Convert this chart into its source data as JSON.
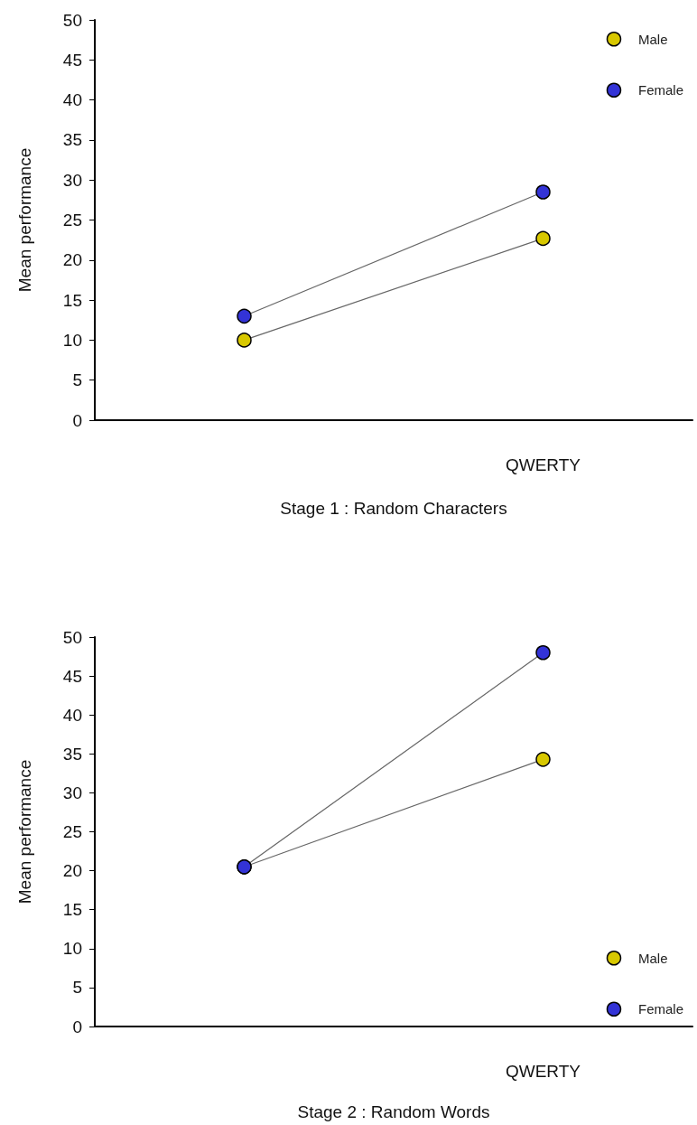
{
  "chart_data": [
    {
      "type": "line",
      "xlabel": "Stage 1 : Random Characters",
      "ylabel": "Mean performance",
      "categories": [
        null,
        "QWERTY"
      ],
      "series": [
        {
          "name": "Male",
          "color": "#d8c800",
          "values": [
            10,
            22.7
          ]
        },
        {
          "name": "Female",
          "color": "#3333d6",
          "values": [
            13,
            28.5
          ]
        }
      ],
      "ylim": [
        0,
        50
      ],
      "yticks": [
        0,
        5,
        10,
        15,
        20,
        25,
        30,
        35,
        40,
        45,
        50
      ],
      "grid": false,
      "legend": "top right",
      "marker": "circle",
      "line_style": "solid"
    },
    {
      "type": "line",
      "xlabel": "Stage 2 : Random Words",
      "ylabel": "Mean performance",
      "categories": [
        null,
        "QWERTY"
      ],
      "series": [
        {
          "name": "Male",
          "color": "#d8c800",
          "values": [
            20.5,
            34.3
          ]
        },
        {
          "name": "Female",
          "color": "#3333d6",
          "values": [
            20.5,
            48
          ]
        }
      ],
      "ylim": [
        0,
        50
      ],
      "yticks": [
        0,
        5,
        10,
        15,
        20,
        25,
        30,
        35,
        40,
        45,
        50
      ],
      "grid": false,
      "legend": "bottom right",
      "marker": "circle",
      "line_style": "solid"
    }
  ]
}
